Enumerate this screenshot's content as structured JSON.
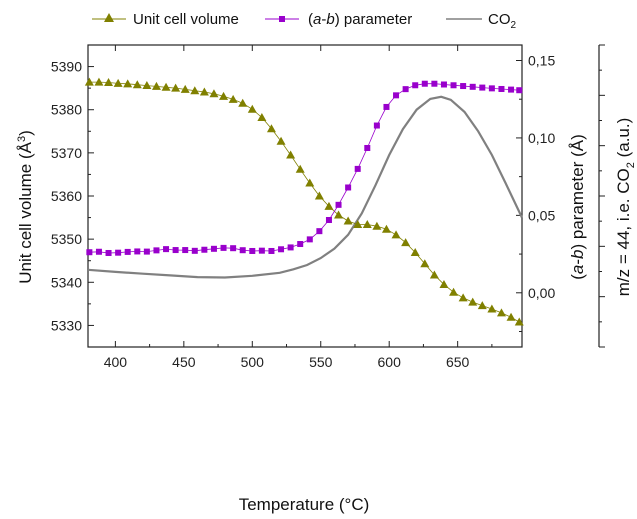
{
  "chart_data": {
    "type": "line",
    "legend_placement": "top",
    "grid": false,
    "x": {
      "label": "Temperature (°C)",
      "range": [
        380,
        697
      ],
      "ticks": [
        400,
        450,
        500,
        550,
        600,
        650
      ],
      "tick_labels": [
        "400",
        "450",
        "500",
        "550",
        "600",
        "650"
      ]
    },
    "y_left": {
      "label": "Unit cell volume (Å³)",
      "label_main": "Unit cell volume (Å",
      "label_sup": "3",
      "label_end": ")",
      "range": [
        5325,
        5395
      ],
      "ticks": [
        5330,
        5340,
        5350,
        5360,
        5370,
        5380,
        5390
      ],
      "tick_labels": [
        "5330",
        "5340",
        "5350",
        "5360",
        "5370",
        "5380",
        "5390"
      ]
    },
    "y_right1": {
      "label_pre": "(",
      "label_it1": "a",
      "label_mid": "-",
      "label_it2": "b",
      "label_post": ") parameter (Å)",
      "range": [
        -0.035,
        0.16
      ],
      "ticks": [
        0.0,
        0.05,
        0.1,
        0.15
      ],
      "tick_labels": [
        "0,00",
        "0,05",
        "0,10",
        "0,15"
      ]
    },
    "y_right2": {
      "label_main": "m/z = 44, i.e. CO",
      "label_sub": "2",
      "label_end": " (a.u.)"
    },
    "series": [
      {
        "name": "Unit cell volume",
        "axis": "left",
        "color": "#808000",
        "marker": "triangle",
        "points": [
          [
            381,
            5386.4
          ],
          [
            388,
            5386.4
          ],
          [
            395,
            5386.3
          ],
          [
            402,
            5386.1
          ],
          [
            409,
            5386.0
          ],
          [
            416,
            5385.8
          ],
          [
            423,
            5385.6
          ],
          [
            430,
            5385.4
          ],
          [
            437,
            5385.2
          ],
          [
            444,
            5385.0
          ],
          [
            451,
            5384.7
          ],
          [
            458,
            5384.4
          ],
          [
            465,
            5384.1
          ],
          [
            472,
            5383.7
          ],
          [
            479,
            5383.1
          ],
          [
            486,
            5382.4
          ],
          [
            493,
            5381.5
          ],
          [
            500,
            5380.1
          ],
          [
            507,
            5378.2
          ],
          [
            514,
            5375.6
          ],
          [
            521,
            5372.7
          ],
          [
            528,
            5369.5
          ],
          [
            535,
            5366.2
          ],
          [
            542,
            5363.0
          ],
          [
            549,
            5360.0
          ],
          [
            556,
            5357.6
          ],
          [
            563,
            5355.6
          ],
          [
            570,
            5354.2
          ],
          [
            577,
            5353.4
          ],
          [
            584,
            5353.4
          ],
          [
            591,
            5353.0
          ],
          [
            598,
            5352.3
          ],
          [
            605,
            5351.0
          ],
          [
            612,
            5349.2
          ],
          [
            619,
            5346.9
          ],
          [
            626,
            5344.3
          ],
          [
            633,
            5341.7
          ],
          [
            640,
            5339.5
          ],
          [
            647,
            5337.7
          ],
          [
            654,
            5336.4
          ],
          [
            661,
            5335.4
          ],
          [
            668,
            5334.6
          ],
          [
            675,
            5333.8
          ],
          [
            682,
            5332.9
          ],
          [
            689,
            5331.9
          ],
          [
            695,
            5330.8
          ]
        ]
      },
      {
        "name": "(a-b) parameter",
        "axis": "right1",
        "color": "#9900CC",
        "marker": "square",
        "points": [
          [
            381,
            0.0262
          ],
          [
            388,
            0.0265
          ],
          [
            395,
            0.0257
          ],
          [
            402,
            0.0259
          ],
          [
            409,
            0.0264
          ],
          [
            416,
            0.0267
          ],
          [
            423,
            0.0266
          ],
          [
            430,
            0.0274
          ],
          [
            437,
            0.0282
          ],
          [
            444,
            0.0276
          ],
          [
            451,
            0.0276
          ],
          [
            458,
            0.0271
          ],
          [
            465,
            0.0278
          ],
          [
            472,
            0.0284
          ],
          [
            479,
            0.029
          ],
          [
            486,
            0.0288
          ],
          [
            493,
            0.0275
          ],
          [
            500,
            0.027
          ],
          [
            507,
            0.0272
          ],
          [
            514,
            0.027
          ],
          [
            521,
            0.0281
          ],
          [
            528,
            0.0293
          ],
          [
            535,
            0.0315
          ],
          [
            542,
            0.0345
          ],
          [
            549,
            0.0398
          ],
          [
            556,
            0.047
          ],
          [
            563,
            0.0568
          ],
          [
            570,
            0.068
          ],
          [
            577,
            0.08
          ],
          [
            584,
            0.0935
          ],
          [
            591,
            0.108
          ],
          [
            598,
            0.12
          ],
          [
            605,
            0.1275
          ],
          [
            612,
            0.1315
          ],
          [
            619,
            0.134
          ],
          [
            626,
            0.135
          ],
          [
            633,
            0.135
          ],
          [
            640,
            0.1345
          ],
          [
            647,
            0.134
          ],
          [
            654,
            0.1335
          ],
          [
            661,
            0.133
          ],
          [
            668,
            0.1325
          ],
          [
            675,
            0.132
          ],
          [
            682,
            0.1316
          ],
          [
            689,
            0.1312
          ],
          [
            695,
            0.1308
          ]
        ]
      },
      {
        "name": "CO₂",
        "name_main": "CO",
        "name_sub": "2",
        "axis": "right2",
        "color": "#808080",
        "marker": "none",
        "points": [
          [
            380,
            5342.9
          ],
          [
            400,
            5342.4
          ],
          [
            420,
            5342.0
          ],
          [
            440,
            5341.6
          ],
          [
            460,
            5341.2
          ],
          [
            480,
            5341.1
          ],
          [
            500,
            5341.5
          ],
          [
            520,
            5342.2
          ],
          [
            530,
            5343.0
          ],
          [
            540,
            5344.0
          ],
          [
            550,
            5345.6
          ],
          [
            560,
            5347.8
          ],
          [
            570,
            5351.0
          ],
          [
            580,
            5356.0
          ],
          [
            590,
            5362.5
          ],
          [
            600,
            5369.5
          ],
          [
            610,
            5375.5
          ],
          [
            620,
            5380.0
          ],
          [
            630,
            5382.5
          ],
          [
            638,
            5383.0
          ],
          [
            645,
            5382.3
          ],
          [
            655,
            5379.5
          ],
          [
            665,
            5375.0
          ],
          [
            675,
            5369.5
          ],
          [
            685,
            5363.0
          ],
          [
            697,
            5355.0
          ]
        ]
      }
    ]
  }
}
